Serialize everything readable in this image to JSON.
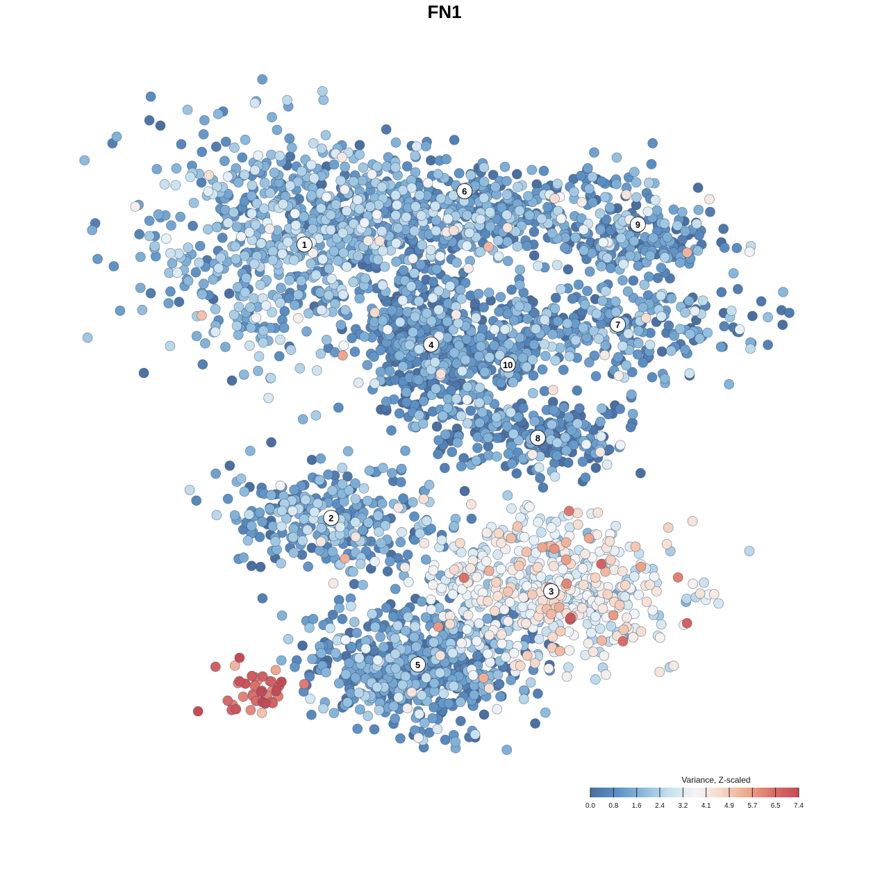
{
  "chart_data": {
    "type": "scatter",
    "title": "FN1",
    "xlabel": "",
    "ylabel": "",
    "xlim": [
      -50,
      50
    ],
    "ylim": [
      -50,
      50
    ],
    "legend": {
      "title": "Variance, Z-scaled",
      "placement": "bottom-right",
      "ticks": [
        "0.0",
        "0.8",
        "1.6",
        "2.4",
        "3.2",
        "4.1",
        "4.9",
        "5.7",
        "6.5",
        "7.4"
      ],
      "range": [
        0.0,
        7.4
      ]
    },
    "colors": [
      "#4a6fa0",
      "#5b8fc4",
      "#8ab9dc",
      "#c5dfee",
      "#f2f5f8",
      "#f7d9c8",
      "#efa88e",
      "#dd6f67",
      "#c44a55"
    ],
    "clusters": [
      {
        "label": "1",
        "x": -21,
        "y": 30,
        "spread": [
          11,
          9
        ],
        "n": 700,
        "mean": 1.5
      },
      {
        "label": "6",
        "x": 3,
        "y": 35,
        "spread": [
          14,
          3.5
        ],
        "n": 520,
        "mean": 1.1
      },
      {
        "label": "4",
        "x": -2,
        "y": 15,
        "spread": [
          4.5,
          5.5
        ],
        "n": 450,
        "mean": 0.7
      },
      {
        "label": "10",
        "x": 9.5,
        "y": 12,
        "spread": [
          3,
          4
        ],
        "n": 110,
        "mean": 1.0
      },
      {
        "label": "9",
        "x": 29,
        "y": 30,
        "spread": [
          6,
          3
        ],
        "n": 160,
        "mean": 0.9
      },
      {
        "label": "7",
        "x": 26,
        "y": 18,
        "spread": [
          10,
          3.5
        ],
        "n": 280,
        "mean": 1.1
      },
      {
        "label": "8",
        "x": 14,
        "y": 1,
        "spread": [
          7,
          3
        ],
        "n": 230,
        "mean": 0.8
      },
      {
        "label": "2",
        "x": -17,
        "y": -11,
        "spread": [
          8,
          4
        ],
        "n": 300,
        "mean": 1.2
      },
      {
        "label": "3",
        "x": 16,
        "y": -22,
        "spread": [
          9,
          5
        ],
        "n": 520,
        "mean": 3.4
      },
      {
        "label": "5",
        "x": -4,
        "y": -33,
        "spread": [
          8,
          5
        ],
        "n": 600,
        "mean": 1.0
      },
      {
        "label": "",
        "x": -27,
        "y": -37,
        "spread": [
          3,
          2
        ],
        "n": 40,
        "mean": 6.5
      }
    ],
    "cluster_labels": [
      {
        "label": "1",
        "x": -21,
        "y": 30
      },
      {
        "label": "6",
        "x": 3,
        "y": 38
      },
      {
        "label": "4",
        "x": -2,
        "y": 15
      },
      {
        "label": "10",
        "x": 9.5,
        "y": 12
      },
      {
        "label": "9",
        "x": 29,
        "y": 33
      },
      {
        "label": "7",
        "x": 26,
        "y": 18
      },
      {
        "label": "8",
        "x": 14,
        "y": 1
      },
      {
        "label": "2",
        "x": -17,
        "y": -11
      },
      {
        "label": "3",
        "x": 16,
        "y": -22
      },
      {
        "label": "5",
        "x": -4,
        "y": -33
      }
    ]
  }
}
